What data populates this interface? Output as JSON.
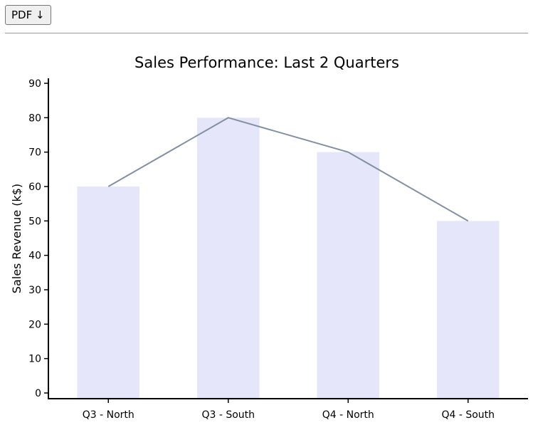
{
  "toolbar": {
    "pdf_label": "PDF ↓"
  },
  "chart_data": {
    "type": "bar",
    "title": "Sales Performance: Last 2 Quarters",
    "xlabel": "",
    "ylabel": "Sales Revenue (k$)",
    "categories": [
      "Q3 - North",
      "Q3 - South",
      "Q4 - North",
      "Q4 - South"
    ],
    "values": [
      60,
      80,
      70,
      50
    ],
    "overlay_line": true,
    "ylim": [
      0,
      90
    ],
    "yticks": [
      "0",
      "10",
      "20",
      "30",
      "40",
      "50",
      "60",
      "70",
      "80",
      "90"
    ],
    "grid": false,
    "bar_color": "#e6e6fa",
    "line_color": "#8390a3"
  }
}
